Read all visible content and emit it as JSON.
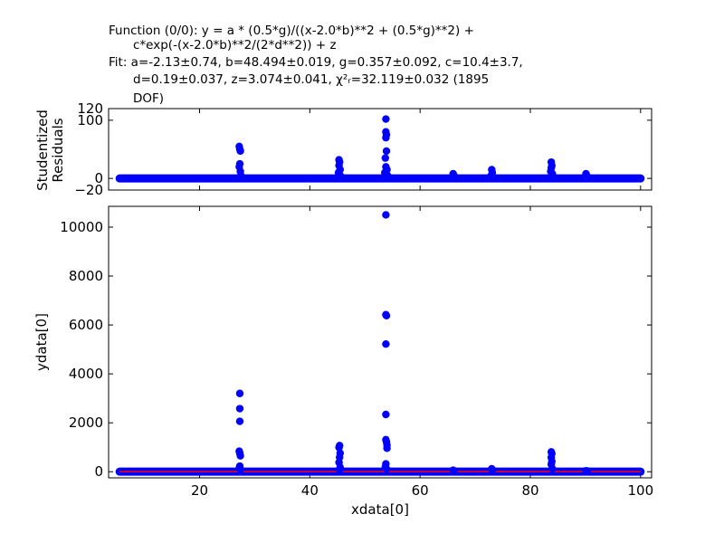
{
  "header": {
    "function_line1": "Function (0/0): y = a * (0.5*g)/((x-2.0*b)**2 + (0.5*g)**2) +",
    "function_line2": "c*exp(-(x-2.0*b)**2/(2*d**2)) + z",
    "fit_line1": "Fit: a=-2.13±0.74, b=48.494±0.019, g=0.357±0.092, c=10.4±3.7,",
    "fit_line2": "d=0.19±0.037, z=3.074±0.041, χ²ᵣ=32.119±0.032 (1895",
    "fit_line3": "DOF)"
  },
  "colors": {
    "points": "#0000ff",
    "fit_line": "#ff0000",
    "axes": "#000000"
  },
  "chart_data": [
    {
      "type": "scatter",
      "name": "residuals",
      "ylabel_line1": "Studentized",
      "ylabel_line2": "Residuals",
      "xlim": [
        3.5,
        102
      ],
      "ylim": [
        -20,
        120
      ],
      "yticks": [
        {
          "value": -20,
          "label": "−20"
        },
        {
          "value": 0,
          "label": "0"
        },
        {
          "value": 100,
          "label": "100"
        },
        {
          "value": 120,
          "label": "120"
        }
      ],
      "baseline": {
        "x_start": 5.5,
        "x_end": 100,
        "y": 0
      },
      "points": [
        [
          27.2,
          55
        ],
        [
          27.3,
          50
        ],
        [
          27.4,
          47
        ],
        [
          27.3,
          25
        ],
        [
          27.2,
          20
        ],
        [
          27.4,
          12
        ],
        [
          27.5,
          5
        ],
        [
          45.3,
          32
        ],
        [
          45.4,
          28
        ],
        [
          45.3,
          22
        ],
        [
          45.5,
          15
        ],
        [
          45.2,
          10
        ],
        [
          45.6,
          4
        ],
        [
          53.8,
          102
        ],
        [
          53.8,
          80
        ],
        [
          53.9,
          75
        ],
        [
          53.8,
          70
        ],
        [
          53.9,
          47
        ],
        [
          53.7,
          35
        ],
        [
          53.8,
          20
        ],
        [
          54.0,
          15
        ],
        [
          53.6,
          10
        ],
        [
          54.1,
          5
        ],
        [
          66.0,
          8
        ],
        [
          66.2,
          4
        ],
        [
          73.0,
          15
        ],
        [
          73.1,
          10
        ],
        [
          72.9,
          5
        ],
        [
          83.8,
          28
        ],
        [
          83.9,
          22
        ],
        [
          83.8,
          18
        ],
        [
          83.7,
          12
        ],
        [
          84.0,
          8
        ],
        [
          83.9,
          3
        ],
        [
          90.1,
          8
        ],
        [
          90.3,
          4
        ]
      ]
    },
    {
      "type": "scatter",
      "name": "data",
      "xlabel": "xdata[0]",
      "ylabel": "ydata[0]",
      "xlim": [
        3.5,
        102
      ],
      "ylim": [
        -250,
        10850
      ],
      "xticks": [
        {
          "value": 20,
          "label": "20"
        },
        {
          "value": 40,
          "label": "40"
        },
        {
          "value": 60,
          "label": "60"
        },
        {
          "value": 80,
          "label": "80"
        },
        {
          "value": 100,
          "label": "100"
        }
      ],
      "yticks": [
        {
          "value": 0,
          "label": "0"
        },
        {
          "value": 2000,
          "label": "2000"
        },
        {
          "value": 4000,
          "label": "4000"
        },
        {
          "value": 6000,
          "label": "6000"
        },
        {
          "value": 8000,
          "label": "8000"
        },
        {
          "value": 10000,
          "label": "10000"
        }
      ],
      "baseline": {
        "x_start": 5.5,
        "x_end": 100,
        "y": 3
      },
      "fit_line": [
        [
          5.5,
          3
        ],
        [
          100,
          3
        ]
      ],
      "points": [
        [
          27.3,
          3200
        ],
        [
          27.3,
          2580
        ],
        [
          27.3,
          2060
        ],
        [
          27.2,
          840
        ],
        [
          27.3,
          760
        ],
        [
          27.4,
          650
        ],
        [
          27.3,
          230
        ],
        [
          27.2,
          150
        ],
        [
          27.4,
          90
        ],
        [
          45.4,
          1070
        ],
        [
          45.3,
          990
        ],
        [
          45.5,
          760
        ],
        [
          45.4,
          590
        ],
        [
          45.3,
          380
        ],
        [
          45.5,
          180
        ],
        [
          45.4,
          80
        ],
        [
          53.8,
          10500
        ],
        [
          53.8,
          6420
        ],
        [
          53.9,
          6380
        ],
        [
          53.8,
          5220
        ],
        [
          53.8,
          2340
        ],
        [
          53.8,
          1310
        ],
        [
          53.9,
          1220
        ],
        [
          54.0,
          1090
        ],
        [
          54.0,
          960
        ],
        [
          53.8,
          320
        ],
        [
          53.7,
          200
        ],
        [
          53.9,
          120
        ],
        [
          66.0,
          60
        ],
        [
          66.2,
          30
        ],
        [
          73.0,
          120
        ],
        [
          73.1,
          70
        ],
        [
          83.8,
          810
        ],
        [
          83.9,
          740
        ],
        [
          83.8,
          580
        ],
        [
          83.9,
          420
        ],
        [
          83.8,
          300
        ],
        [
          84.0,
          120
        ],
        [
          90.1,
          40
        ],
        [
          90.3,
          30
        ]
      ]
    }
  ]
}
